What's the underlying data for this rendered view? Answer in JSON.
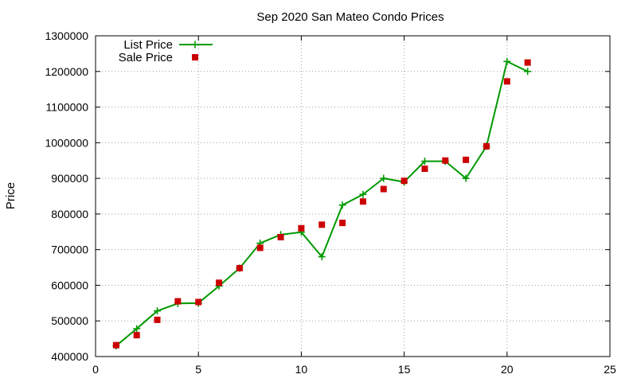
{
  "chart_data": {
    "type": "line",
    "title": "Sep 2020 San Mateo Condo Prices",
    "xlabel": "",
    "ylabel": "Price",
    "xlim": [
      0,
      25
    ],
    "ylim": [
      400000,
      1300000
    ],
    "x_ticks": [
      "0",
      "5",
      "10",
      "15",
      "20",
      "25"
    ],
    "y_ticks": [
      "400000",
      "500000",
      "600000",
      "700000",
      "800000",
      "900000",
      "1000000",
      "1100000",
      "1200000",
      "1300000"
    ],
    "grid": true,
    "legend_position": "top-left",
    "series": [
      {
        "name": "List Price",
        "style": "line+plus-marker",
        "color": "#009900",
        "x": [
          1,
          2,
          3,
          4,
          5,
          6,
          7,
          8,
          9,
          10,
          11,
          12,
          13,
          14,
          15,
          16,
          17,
          18,
          19,
          20,
          21
        ],
        "y": [
          430000,
          478000,
          528000,
          549000,
          550000,
          598000,
          648000,
          718000,
          742000,
          749000,
          680000,
          825000,
          855000,
          900000,
          890000,
          948000,
          948000,
          900000,
          990000,
          1228000,
          1200000
        ]
      },
      {
        "name": "Sale Price",
        "style": "square-marker",
        "color": "#cc0000",
        "x": [
          1,
          2,
          3,
          4,
          5,
          6,
          7,
          8,
          9,
          10,
          11,
          12,
          13,
          14,
          15,
          16,
          17,
          18,
          19,
          20,
          21
        ],
        "y": [
          432000,
          460000,
          503000,
          555000,
          553000,
          607000,
          648000,
          705000,
          735000,
          760000,
          770000,
          775000,
          835000,
          870000,
          893000,
          927000,
          950000,
          952000,
          990000,
          1172000,
          1225000
        ]
      }
    ]
  }
}
